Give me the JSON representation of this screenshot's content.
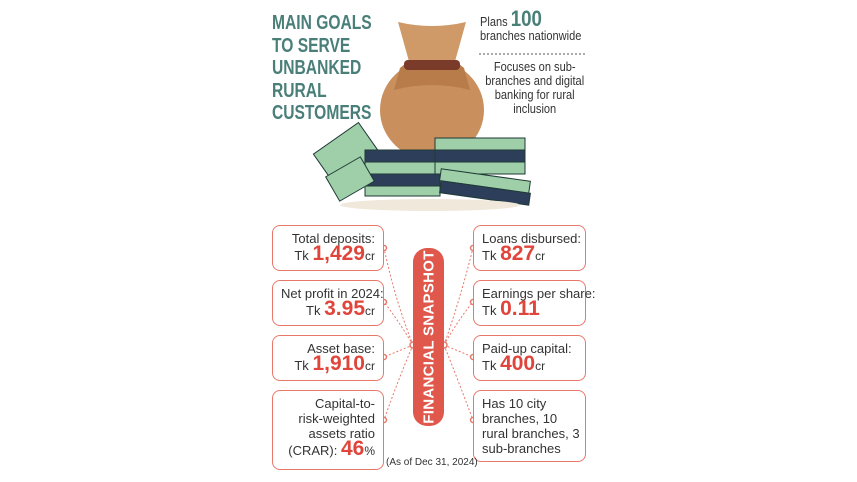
{
  "header": {
    "title": [
      "MAIN GOALS",
      "TO SERVE",
      "UNBANKED",
      "RURAL",
      "CUSTOMERS"
    ]
  },
  "goals": [
    {
      "prefix": "Plans",
      "highlight": "100",
      "lines": [
        "branches nationwide"
      ]
    },
    {
      "lines": [
        "Focuses on sub-",
        "branches and digital",
        "banking for rural",
        "inclusion"
      ]
    }
  ],
  "snapshot": {
    "label": "FINANCIAL SNAPSHOT",
    "note": "(As of Dec 31, 2024)",
    "left": [
      {
        "label": [
          "Total deposits:"
        ],
        "prefix": "Tk",
        "value": "1,429",
        "unit": "cr"
      },
      {
        "label": [
          "Net profit in 2024:"
        ],
        "prefix": "Tk",
        "value": "3.95",
        "unit": "cr"
      },
      {
        "label": [
          "Asset base:"
        ],
        "prefix": "Tk",
        "value": "1,910",
        "unit": "cr"
      },
      {
        "label": [
          "Capital-to-",
          "risk-weighted",
          "assets ratio"
        ],
        "prefix": "(CRAR):",
        "value": "46",
        "unit": "%"
      }
    ],
    "right": [
      {
        "label": [
          "Loans disbursed:"
        ],
        "prefix": "Tk",
        "value": "827",
        "unit": "cr"
      },
      {
        "label": [
          "Earnings per share:"
        ],
        "prefix": "Tk",
        "value": "0.11"
      },
      {
        "label": [
          "Paid-up capital:"
        ],
        "prefix": "Tk",
        "value": "400",
        "unit": "cr"
      },
      {
        "label": [
          "Has 10 city",
          "branches, 10",
          "rural branches, 3",
          "sub-branches"
        ]
      }
    ]
  }
}
